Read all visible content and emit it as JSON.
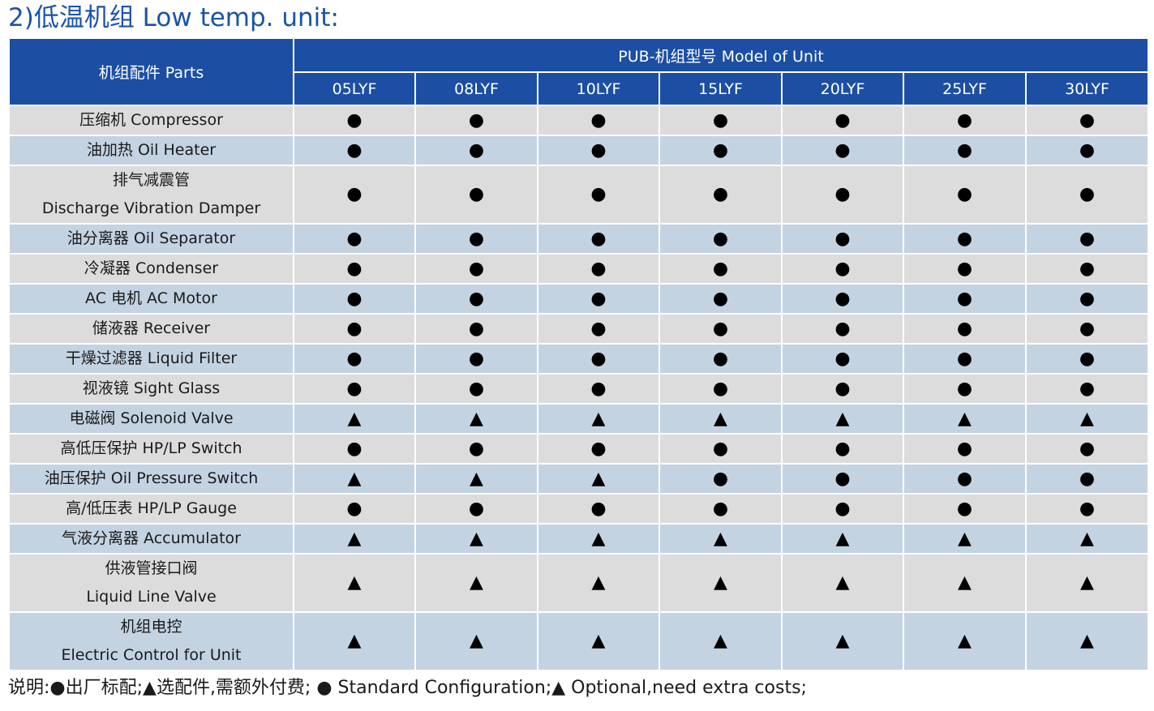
{
  "title": "2)低温机组 Low temp. unit:",
  "table": {
    "parts_header": "机组配件 Parts",
    "model_header": "PUB-机组型号 Model of Unit",
    "models": [
      "05LYF",
      "08LYF",
      "10LYF",
      "15LYF",
      "20LYF",
      "25LYF",
      "30LYF"
    ],
    "symbols": {
      "standard": "●",
      "optional": "▲"
    },
    "rows": [
      {
        "lines": [
          "压缩机 Compressor"
        ],
        "values": [
          "standard",
          "standard",
          "standard",
          "standard",
          "standard",
          "standard",
          "standard"
        ]
      },
      {
        "lines": [
          "油加热 Oil Heater"
        ],
        "values": [
          "standard",
          "standard",
          "standard",
          "standard",
          "standard",
          "standard",
          "standard"
        ]
      },
      {
        "lines": [
          "排气减震管",
          "Discharge Vibration Damper"
        ],
        "values": [
          "standard",
          "standard",
          "standard",
          "standard",
          "standard",
          "standard",
          "standard"
        ]
      },
      {
        "lines": [
          "油分离器 Oil Separator"
        ],
        "values": [
          "standard",
          "standard",
          "standard",
          "standard",
          "standard",
          "standard",
          "standard"
        ]
      },
      {
        "lines": [
          "冷凝器 Condenser"
        ],
        "values": [
          "standard",
          "standard",
          "standard",
          "standard",
          "standard",
          "standard",
          "standard"
        ]
      },
      {
        "lines": [
          "AC 电机 AC Motor"
        ],
        "values": [
          "standard",
          "standard",
          "standard",
          "standard",
          "standard",
          "standard",
          "standard"
        ]
      },
      {
        "lines": [
          "储液器  Receiver"
        ],
        "values": [
          "standard",
          "standard",
          "standard",
          "standard",
          "standard",
          "standard",
          "standard"
        ]
      },
      {
        "lines": [
          "干燥过滤器  Liquid Filter"
        ],
        "values": [
          "standard",
          "standard",
          "standard",
          "standard",
          "standard",
          "standard",
          "standard"
        ]
      },
      {
        "lines": [
          "视液镜 Sight Glass"
        ],
        "values": [
          "standard",
          "standard",
          "standard",
          "standard",
          "standard",
          "standard",
          "standard"
        ]
      },
      {
        "lines": [
          "电磁阀 Solenoid Valve"
        ],
        "values": [
          "optional",
          "optional",
          "optional",
          "optional",
          "optional",
          "optional",
          "optional"
        ]
      },
      {
        "lines": [
          "高低压保护 HP/LP Switch"
        ],
        "values": [
          "standard",
          "standard",
          "standard",
          "standard",
          "standard",
          "standard",
          "standard"
        ]
      },
      {
        "lines": [
          "油压保护 Oil Pressure Switch"
        ],
        "values": [
          "optional",
          "optional",
          "optional",
          "standard",
          "standard",
          "standard",
          "standard"
        ]
      },
      {
        "lines": [
          "高/低压表 HP/LP Gauge"
        ],
        "values": [
          "standard",
          "standard",
          "standard",
          "standard",
          "standard",
          "standard",
          "standard"
        ]
      },
      {
        "lines": [
          "气液分离器 Accumulator"
        ],
        "values": [
          "optional",
          "optional",
          "optional",
          "optional",
          "optional",
          "optional",
          "optional"
        ]
      },
      {
        "lines": [
          "供液管接口阀",
          "Liquid Line Valve"
        ],
        "values": [
          "optional",
          "optional",
          "optional",
          "optional",
          "optional",
          "optional",
          "optional"
        ]
      },
      {
        "lines": [
          "机组电控",
          "Electric Control for Unit"
        ],
        "values": [
          "optional",
          "optional",
          "optional",
          "optional",
          "optional",
          "optional",
          "optional"
        ]
      }
    ]
  },
  "note": "说明:●出厂标配;▲选配件,需额外付费; ● Standard Configuration;▲ Optional,need extra costs;"
}
